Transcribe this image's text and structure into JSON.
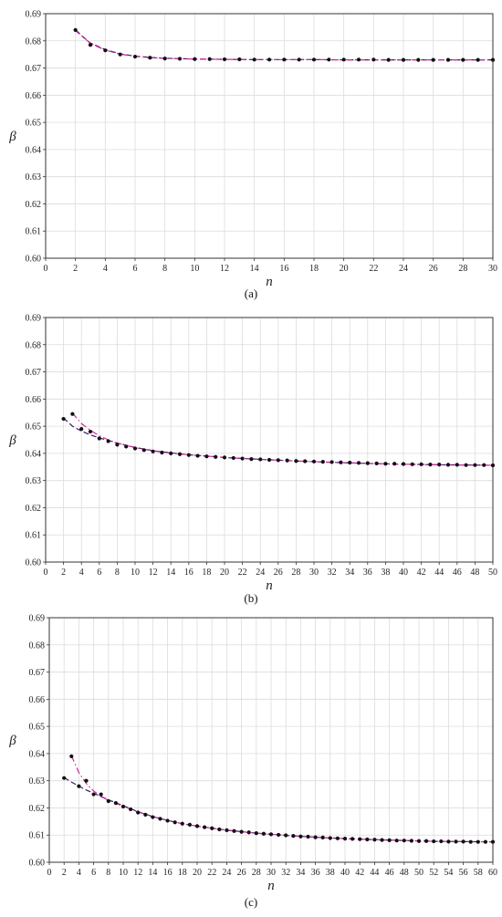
{
  "figure": {
    "panels": [
      {
        "caption": "(a)"
      },
      {
        "caption": "(b)"
      },
      {
        "caption": "(c)"
      }
    ]
  },
  "colors": {
    "points": "#111111",
    "dashed_fit": "#3a1a6e",
    "dashdot_fit": "#d6249f",
    "grid": "#dcdcdc",
    "frame": "#333333"
  },
  "chart_data": [
    {
      "type": "scatter",
      "caption": "(a)",
      "xlabel": "n",
      "ylabel": "β",
      "xlim": [
        0,
        30
      ],
      "ylim": [
        0.6,
        0.69
      ],
      "xticks": [
        0,
        2,
        4,
        6,
        8,
        10,
        12,
        14,
        16,
        18,
        20,
        22,
        24,
        26,
        28,
        30
      ],
      "yticks": [
        "0.60",
        "0.61",
        "0.62",
        "0.63",
        "0.64",
        "0.65",
        "0.66",
        "0.67",
        "0.68",
        "0.69"
      ],
      "grid": true,
      "series": [
        {
          "style": "points",
          "x": [
            2,
            3,
            4,
            5,
            6,
            7,
            8,
            9,
            10,
            11,
            12,
            13,
            14,
            15,
            16,
            17,
            18,
            19,
            20,
            21,
            22,
            23,
            24,
            25,
            26,
            27,
            28,
            29,
            30
          ],
          "y": [
            0.684,
            0.6785,
            0.6765,
            0.675,
            0.6742,
            0.6738,
            0.6735,
            0.6734,
            0.6733,
            0.6733,
            0.6732,
            0.6732,
            0.6731,
            0.6731,
            0.6731,
            0.6731,
            0.6731,
            0.6731,
            0.6731,
            0.6731,
            0.6731,
            0.673,
            0.673,
            0.673,
            0.673,
            0.673,
            0.673,
            0.673,
            0.673
          ]
        },
        {
          "style": "dashed",
          "x": [
            2,
            3,
            4,
            5,
            6,
            7,
            8,
            10,
            12,
            14,
            16,
            18,
            20,
            22,
            24,
            26,
            28,
            30
          ],
          "y": [
            0.6838,
            0.6792,
            0.6768,
            0.6752,
            0.6744,
            0.6739,
            0.6736,
            0.6733,
            0.6732,
            0.6731,
            0.6731,
            0.6731,
            0.673,
            0.673,
            0.673,
            0.673,
            0.673,
            0.673
          ]
        },
        {
          "style": "dashdot",
          "x": [
            2,
            3,
            4,
            5,
            6,
            7,
            8,
            10,
            12,
            14,
            16,
            18,
            20,
            22,
            24,
            26,
            28,
            30
          ],
          "y": [
            0.6842,
            0.679,
            0.6766,
            0.6751,
            0.6743,
            0.6738,
            0.6736,
            0.6733,
            0.6732,
            0.6731,
            0.6731,
            0.6731,
            0.673,
            0.673,
            0.673,
            0.673,
            0.673,
            0.673
          ]
        }
      ]
    },
    {
      "type": "scatter",
      "caption": "(b)",
      "xlabel": "n",
      "ylabel": "β",
      "xlim": [
        0,
        50
      ],
      "ylim": [
        0.6,
        0.69
      ],
      "xticks": [
        0,
        2,
        4,
        6,
        8,
        10,
        12,
        14,
        16,
        18,
        20,
        22,
        24,
        26,
        28,
        30,
        32,
        34,
        36,
        38,
        40,
        42,
        44,
        46,
        48,
        50
      ],
      "yticks": [
        "0.60",
        "0.61",
        "0.62",
        "0.63",
        "0.64",
        "0.65",
        "0.66",
        "0.67",
        "0.68",
        "0.69"
      ],
      "grid": true,
      "series": [
        {
          "style": "points",
          "x": [
            2,
            3,
            4,
            5,
            6,
            7,
            8,
            9,
            10,
            11,
            12,
            13,
            14,
            15,
            16,
            17,
            18,
            19,
            20,
            21,
            22,
            23,
            24,
            25,
            26,
            27,
            28,
            29,
            30,
            31,
            32,
            33,
            34,
            35,
            36,
            37,
            38,
            39,
            40,
            41,
            42,
            43,
            44,
            45,
            46,
            47,
            48,
            49,
            50
          ],
          "y": [
            0.6527,
            0.6545,
            0.649,
            0.648,
            0.6455,
            0.6445,
            0.6432,
            0.6425,
            0.6418,
            0.6412,
            0.6407,
            0.6403,
            0.64,
            0.6397,
            0.6394,
            0.6391,
            0.6389,
            0.6387,
            0.6385,
            0.6383,
            0.6381,
            0.6379,
            0.6378,
            0.6376,
            0.6375,
            0.6374,
            0.6372,
            0.6371,
            0.637,
            0.6369,
            0.6368,
            0.6367,
            0.6366,
            0.6365,
            0.6364,
            0.6363,
            0.6362,
            0.6362,
            0.6361,
            0.636,
            0.636,
            0.6359,
            0.6359,
            0.6358,
            0.6358,
            0.6357,
            0.6357,
            0.6357,
            0.6356
          ]
        },
        {
          "style": "dashed",
          "x": [
            2,
            3,
            4,
            5,
            6,
            8,
            10,
            12,
            14,
            16,
            18,
            20,
            24,
            28,
            32,
            36,
            40,
            44,
            48,
            50
          ],
          "y": [
            0.653,
            0.65,
            0.6482,
            0.6468,
            0.6457,
            0.6438,
            0.6422,
            0.641,
            0.6402,
            0.6395,
            0.639,
            0.6385,
            0.6378,
            0.6372,
            0.6367,
            0.6363,
            0.636,
            0.6358,
            0.6357,
            0.6356
          ]
        },
        {
          "style": "dashdot",
          "x": [
            3,
            4,
            5,
            6,
            7,
            8,
            10,
            12,
            14,
            16,
            18,
            20,
            24,
            28,
            32,
            36,
            40,
            44,
            48,
            50
          ],
          "y": [
            0.6548,
            0.651,
            0.6485,
            0.6465,
            0.645,
            0.6438,
            0.6421,
            0.6409,
            0.6401,
            0.6395,
            0.639,
            0.6385,
            0.6378,
            0.6372,
            0.6367,
            0.6363,
            0.636,
            0.6358,
            0.6357,
            0.6356
          ]
        }
      ]
    },
    {
      "type": "scatter",
      "caption": "(c)",
      "xlabel": "n",
      "ylabel": "β",
      "xlim": [
        0,
        60
      ],
      "ylim": [
        0.6,
        0.69
      ],
      "xticks": [
        0,
        2,
        4,
        6,
        8,
        10,
        12,
        14,
        16,
        18,
        20,
        22,
        24,
        26,
        28,
        30,
        32,
        34,
        36,
        38,
        40,
        42,
        44,
        46,
        48,
        50,
        52,
        54,
        56,
        58,
        60
      ],
      "yticks": [
        "0.60",
        "0.61",
        "0.62",
        "0.63",
        "0.64",
        "0.65",
        "0.66",
        "0.67",
        "0.68",
        "0.69"
      ],
      "grid": true,
      "series": [
        {
          "style": "points",
          "x": [
            2,
            3,
            4,
            5,
            6,
            7,
            8,
            9,
            10,
            11,
            12,
            13,
            14,
            15,
            16,
            17,
            18,
            19,
            20,
            21,
            22,
            23,
            24,
            25,
            26,
            27,
            28,
            29,
            30,
            31,
            32,
            33,
            34,
            35,
            36,
            37,
            38,
            39,
            40,
            41,
            42,
            43,
            44,
            45,
            46,
            47,
            48,
            49,
            50,
            51,
            52,
            53,
            54,
            55,
            56,
            57,
            58,
            59,
            60
          ],
          "y": [
            0.631,
            0.639,
            0.628,
            0.63,
            0.625,
            0.625,
            0.6225,
            0.6218,
            0.6205,
            0.6195,
            0.6183,
            0.6175,
            0.6166,
            0.616,
            0.6153,
            0.6147,
            0.6142,
            0.6138,
            0.6133,
            0.6129,
            0.6125,
            0.6121,
            0.6118,
            0.6115,
            0.6112,
            0.611,
            0.6107,
            0.6105,
            0.6103,
            0.6101,
            0.6099,
            0.6097,
            0.6095,
            0.6094,
            0.6092,
            0.6091,
            0.6089,
            0.6088,
            0.6087,
            0.6086,
            0.6085,
            0.6084,
            0.6083,
            0.6082,
            0.6081,
            0.608,
            0.608,
            0.6079,
            0.6078,
            0.6078,
            0.6077,
            0.6077,
            0.6076,
            0.6076,
            0.6076,
            0.6075,
            0.6075,
            0.6075,
            0.6075
          ]
        },
        {
          "style": "dashed",
          "x": [
            2,
            3,
            4,
            5,
            6,
            8,
            10,
            12,
            14,
            16,
            18,
            20,
            24,
            28,
            32,
            36,
            40,
            44,
            48,
            52,
            56,
            60
          ],
          "y": [
            0.6312,
            0.6295,
            0.628,
            0.6266,
            0.6254,
            0.623,
            0.6208,
            0.6186,
            0.6168,
            0.6154,
            0.6142,
            0.6133,
            0.6118,
            0.6107,
            0.6099,
            0.6092,
            0.6087,
            0.6083,
            0.608,
            0.6077,
            0.6076,
            0.6075
          ]
        },
        {
          "style": "dashdot",
          "x": [
            3,
            4,
            5,
            6,
            7,
            8,
            10,
            12,
            14,
            16,
            18,
            20,
            24,
            28,
            32,
            36,
            40,
            44,
            48,
            52,
            56,
            60
          ],
          "y": [
            0.6392,
            0.633,
            0.629,
            0.6262,
            0.6242,
            0.6228,
            0.6206,
            0.6185,
            0.6168,
            0.6154,
            0.6142,
            0.6133,
            0.6118,
            0.6107,
            0.6099,
            0.6092,
            0.6087,
            0.6083,
            0.608,
            0.6077,
            0.6076,
            0.6075
          ]
        }
      ]
    }
  ]
}
